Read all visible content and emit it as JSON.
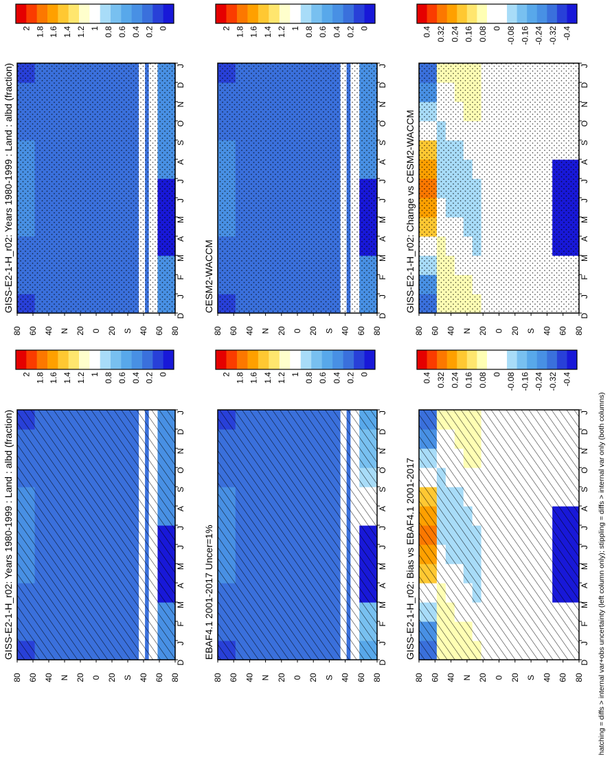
{
  "footnote": "hatching = diffs > internal var+obs uncertainty (left column only); stippling = diffs > internal var only (both columns)",
  "colors": {
    "abs_scale": [
      "#e50000",
      "#fa3c00",
      "#fc7800",
      "#ffa000",
      "#ffc832",
      "#ffe66e",
      "#ffffcc",
      "#ffffff",
      "#a8dcf8",
      "#78c0f0",
      "#58a8ea",
      "#4890e4",
      "#3a70dc",
      "#2840d8",
      "#1818d8"
    ],
    "diff_scale": [
      "#e50000",
      "#fa3c00",
      "#fc7800",
      "#ffa000",
      "#ffc832",
      "#ffe66e",
      "#ffffb4",
      "#ffffff",
      "#ffffff",
      "#a8dcf8",
      "#78c0f0",
      "#58a8ea",
      "#4890e4",
      "#3a70dc",
      "#2840d8",
      "#1818d8"
    ]
  },
  "colorbars": {
    "abs_labels": [
      "2",
      "1.8",
      "1.6",
      "1.4",
      "1.2",
      "1",
      "0.8",
      "0.6",
      "0.4",
      "0.2",
      "0"
    ],
    "diff_labels": [
      "0.4",
      "0.32",
      "0.24",
      "0.16",
      "0.08",
      "0",
      "-0.08",
      "-0.16",
      "-0.24",
      "-0.32",
      "-0.4"
    ]
  },
  "chart_data": [
    {
      "id": "p1",
      "type": "heatmap",
      "title": "GISS-E2-1-H_r02: Years 1980-1999 : Land : albd (fraction)",
      "x_ticks": [
        "D",
        "J",
        "F",
        "M",
        "A",
        "M",
        "J",
        "J",
        "A",
        "S",
        "O",
        "N",
        "D",
        "J"
      ],
      "y_ticks": [
        "80",
        "60",
        "40",
        "N",
        "20",
        "0",
        "20",
        "S",
        "40",
        "60",
        "80"
      ],
      "value_range": [
        0,
        2
      ],
      "overlay": "hatching",
      "colorbar": "abs"
    },
    {
      "id": "p2",
      "type": "heatmap",
      "title": "GISS-E2-1-H_r02: Years 1980-1999 : Land : albd (fraction)",
      "x_ticks": [
        "D",
        "J",
        "F",
        "M",
        "A",
        "M",
        "J",
        "J",
        "A",
        "S",
        "O",
        "N",
        "D",
        "J"
      ],
      "y_ticks": [
        "80",
        "60",
        "40",
        "N",
        "20",
        "0",
        "20",
        "S",
        "40",
        "60",
        "80"
      ],
      "value_range": [
        0,
        2
      ],
      "overlay": "stippling",
      "colorbar": "abs"
    },
    {
      "id": "p3",
      "type": "heatmap",
      "title": "EBAF4.1 2001-2017 Uncer=1%",
      "x_ticks": [
        "D",
        "J",
        "F",
        "M",
        "A",
        "M",
        "J",
        "J",
        "A",
        "S",
        "O",
        "N",
        "D",
        "J"
      ],
      "y_ticks": [
        "80",
        "60",
        "40",
        "N",
        "20",
        "0",
        "20",
        "S",
        "40",
        "60",
        "80"
      ],
      "value_range": [
        0,
        2
      ],
      "overlay": "hatching",
      "colorbar": "abs"
    },
    {
      "id": "p4",
      "type": "heatmap",
      "title": "CESM2-WACCM",
      "x_ticks": [
        "D",
        "J",
        "F",
        "M",
        "A",
        "M",
        "J",
        "J",
        "A",
        "S",
        "O",
        "N",
        "D",
        "J"
      ],
      "y_ticks": [
        "80",
        "60",
        "40",
        "N",
        "20",
        "0",
        "20",
        "S",
        "40",
        "60",
        "80"
      ],
      "value_range": [
        0,
        2
      ],
      "overlay": "stippling",
      "colorbar": "abs"
    },
    {
      "id": "p5",
      "type": "heatmap",
      "title": "GISS-E2-1-H_r02: Bias vs EBAF4.1 2001-2017",
      "x_ticks": [
        "D",
        "J",
        "F",
        "M",
        "A",
        "M",
        "J",
        "J",
        "A",
        "S",
        "O",
        "N",
        "D",
        "J"
      ],
      "y_ticks": [
        "80",
        "60",
        "40",
        "N",
        "20",
        "0",
        "20",
        "S",
        "40",
        "60",
        "80"
      ],
      "value_range": [
        -0.4,
        0.4
      ],
      "overlay": "hatching",
      "colorbar": "diff"
    },
    {
      "id": "p6",
      "type": "heatmap",
      "title": "GISS-E2-1-H_r02: Change vs CESM2-WACCM",
      "x_ticks": [
        "D",
        "J",
        "F",
        "M",
        "A",
        "M",
        "J",
        "J",
        "A",
        "S",
        "O",
        "N",
        "D",
        "J"
      ],
      "y_ticks": [
        "80",
        "60",
        "40",
        "N",
        "20",
        "0",
        "20",
        "S",
        "40",
        "60",
        "80"
      ],
      "value_range": [
        -0.4,
        0.4
      ],
      "overlay": "stippling",
      "colorbar": "diff"
    }
  ]
}
